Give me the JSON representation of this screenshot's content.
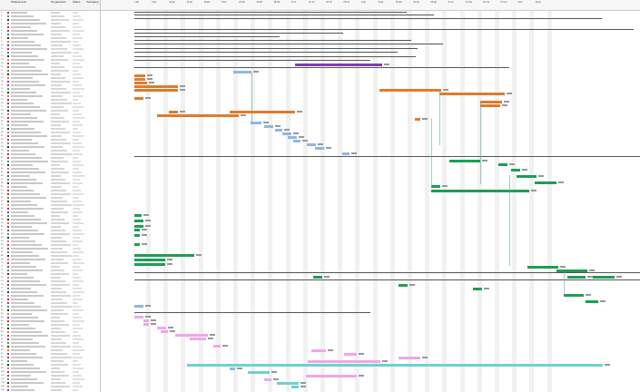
{
  "table_header": {
    "col_name": "Taakopname",
    "col_assigned": "Toegewezen",
    "col_status": "Status",
    "col_progress": "Voortgang"
  },
  "timeline_weeks": [
    "1 jan",
    "8 jan",
    "15 jan",
    "22 jan",
    "29 jan",
    "5 feb",
    "12 feb",
    "19 feb",
    "26 feb",
    "4 mrt",
    "11 mrt",
    "18 mrt",
    "25 mrt",
    "1 apr",
    "8 apr",
    "15 apr",
    "22 apr",
    "29 apr",
    "6 mei",
    "13 mei",
    "20 mei",
    "27 mei",
    "3 jun",
    "10 jun"
  ],
  "colors": {
    "orange": "#e07b2a",
    "blue": "#8fb8e0",
    "green": "#1f9d55",
    "purple": "#7b3fb0",
    "pink": "#f0a6e8",
    "teal": "#6fd0d0",
    "summary": "#555555"
  }
}
